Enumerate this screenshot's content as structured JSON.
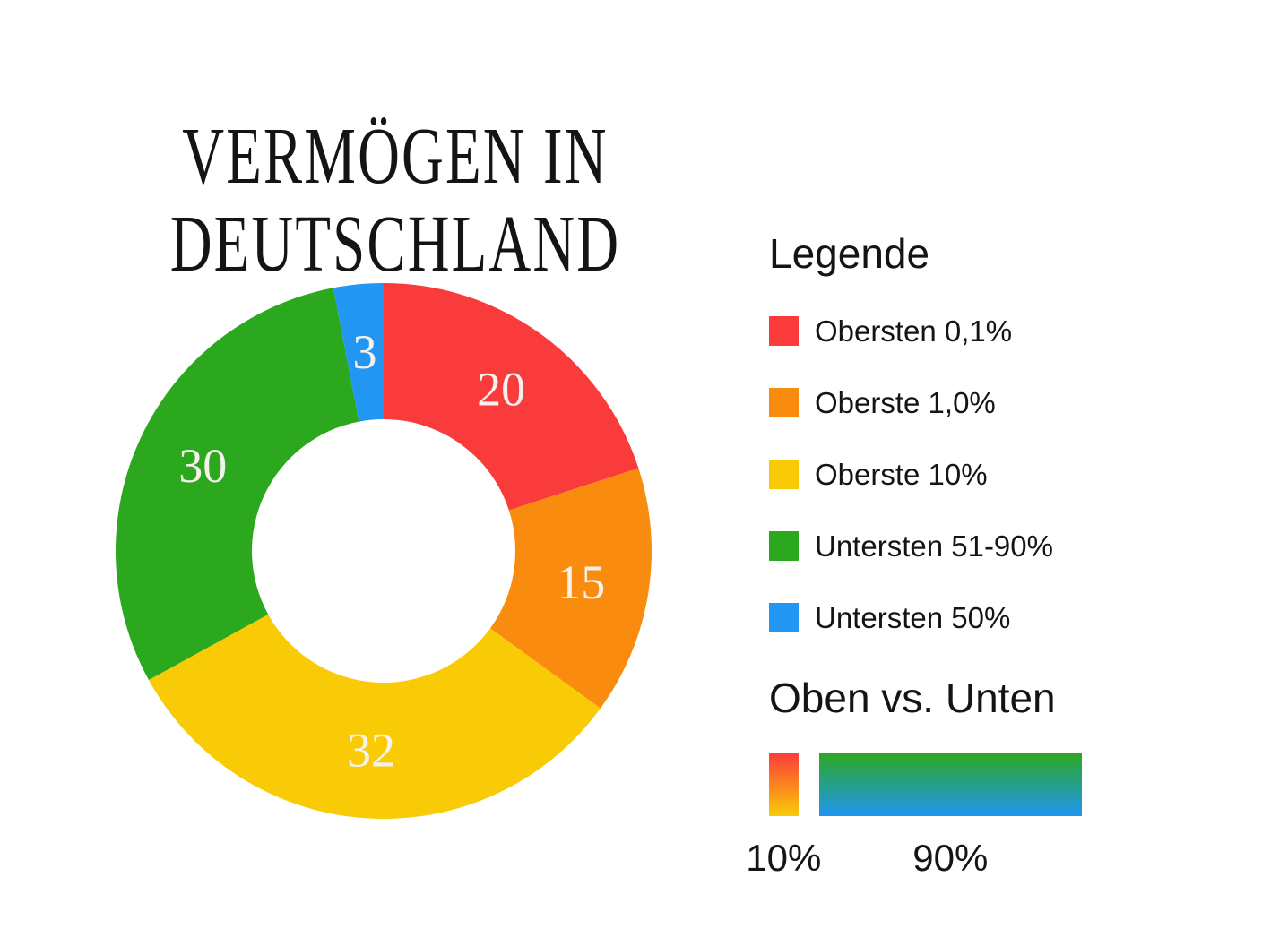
{
  "canvas": {
    "background": "#FFFFFF"
  },
  "title": {
    "line1": "VERMÖGEN IN",
    "line2": "DEUTSCHLAND",
    "color": "#141414"
  },
  "chart_data": {
    "type": "donut",
    "title": "Vermögen in Deutschland",
    "unit": "percent",
    "direction": "clockwise",
    "start_angle_deg": 0,
    "inner_radius_ratio": 0.49,
    "segments": [
      {
        "label": "Obersten 0,1%",
        "value": 20,
        "color": "#FA3B3B"
      },
      {
        "label": "Oberste 1,0%",
        "value": 15,
        "color": "#F98C0E"
      },
      {
        "label": "Oberste 10%",
        "value": 32,
        "color": "#F9CB07"
      },
      {
        "label": "Untersten 51-90%",
        "value": 30,
        "color": "#2BA81E"
      },
      {
        "label": "Untersten 50%",
        "value": 3,
        "color": "#2196F3"
      }
    ],
    "value_labels": [
      "20",
      "15",
      "32",
      "30",
      "3"
    ],
    "value_label_color": "#F5F2EB"
  },
  "legend": {
    "heading": "Legende",
    "items": [
      {
        "label": "Obersten 0,1%",
        "color": "#FA3B3B"
      },
      {
        "label": "Oberste 1,0%",
        "color": "#F98C0E"
      },
      {
        "label": "Oberste 10%",
        "color": "#F9CB07"
      },
      {
        "label": "Untersten 51-90%",
        "color": "#2BA81E"
      },
      {
        "label": "Untersten 50%",
        "color": "#2196F3"
      }
    ]
  },
  "comparison": {
    "heading": "Oben vs. Unten",
    "bars": [
      {
        "label": "10%",
        "share": 10,
        "gradient_top": "#FA3B3B",
        "gradient_bottom": "#F9CB07"
      },
      {
        "label": "90%",
        "share": 90,
        "gradient_top": "#2BA81E",
        "gradient_bottom": "#2196F3"
      }
    ]
  }
}
